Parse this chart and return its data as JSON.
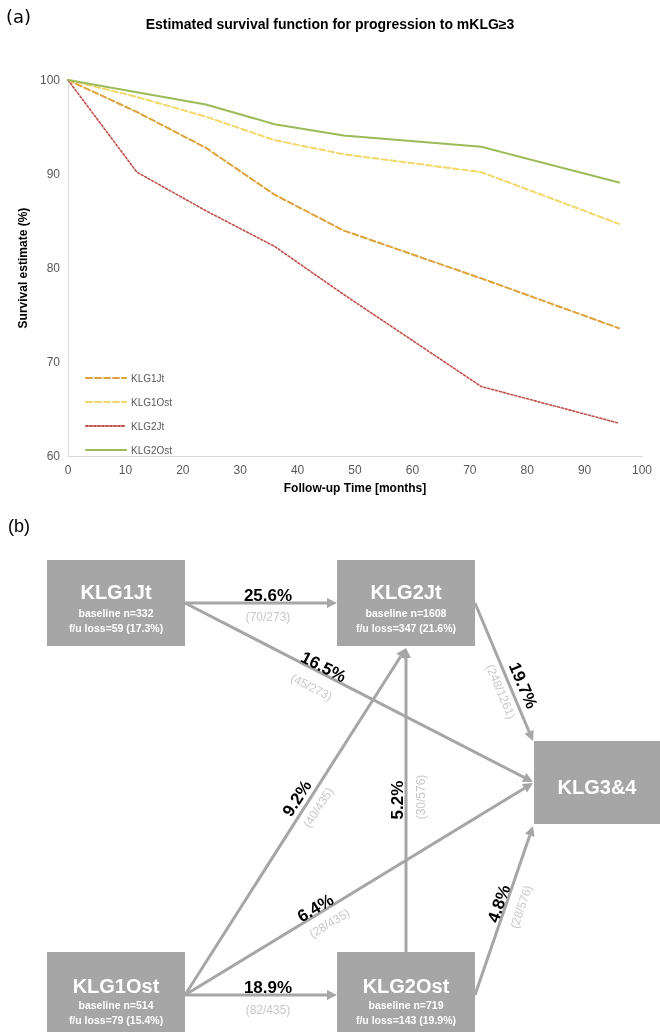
{
  "chart_data": [
    {
      "type": "line",
      "title": "Estimated survival function for progression to mKLG≥3",
      "xlabel": "Follow-up Time [months]",
      "ylabel": "Survival estimate (%)",
      "annotations": [
        "(a)"
      ],
      "xlim": [
        0,
        100
      ],
      "xticks": [
        0,
        10,
        20,
        30,
        40,
        50,
        60,
        70,
        80,
        90,
        100
      ],
      "ylim": [
        60,
        100
      ],
      "yticks": [
        60,
        70,
        80,
        90,
        100
      ],
      "grid": false,
      "legend": "bottom left",
      "marker": "none",
      "x": [
        0,
        12,
        24,
        36,
        48,
        72,
        96
      ],
      "series": [
        {
          "name": "KLG1Jt",
          "color": "#dda23c",
          "line_style": "dashed",
          "values": [
            100,
            96.6,
            92.8,
            87.8,
            84.0,
            78.9,
            73.6
          ]
        },
        {
          "name": "KLG1Ost",
          "color": "#f2d86a",
          "line_style": "dashed",
          "values": [
            100,
            98.2,
            96.1,
            93.6,
            92.1,
            90.2,
            84.7
          ]
        },
        {
          "name": "KLG2Jt",
          "color": "#c0504d",
          "line_style": "dotted",
          "values": [
            100,
            90.2,
            86.1,
            82.3,
            77.2,
            67.4,
            63.5
          ]
        },
        {
          "name": "KLG2Ost",
          "color": "#9bbb59",
          "line_style": "solid",
          "values": [
            100,
            98.7,
            97.4,
            95.3,
            94.1,
            92.9,
            89.1
          ]
        }
      ]
    },
    {
      "type": "other",
      "annotations": [
        "(b)",
        "KLG1Jt",
        "baseline n=332",
        "f/u loss=59 (17.3%)",
        "KLG2Jt",
        "baseline n=1608",
        "f/u loss=347 (21.6%)",
        "KLG3&4",
        "KLG1Ost",
        "baseline n=514",
        "f/u loss=79 (15.4%)",
        "KLG2Ost",
        "baseline n=719",
        "f/u loss=143 (19.9%)",
        "25.6%",
        "(70/273)",
        "16.5%",
        "(45/273)",
        "19.7%",
        "(248/1261)",
        "9.2%",
        "(40/435)",
        "5.2%",
        "(30/576)",
        "6.4%",
        "(28/435)",
        "18.9%",
        "(82/435)",
        "4.8%",
        "(28/576)"
      ]
    }
  ]
}
